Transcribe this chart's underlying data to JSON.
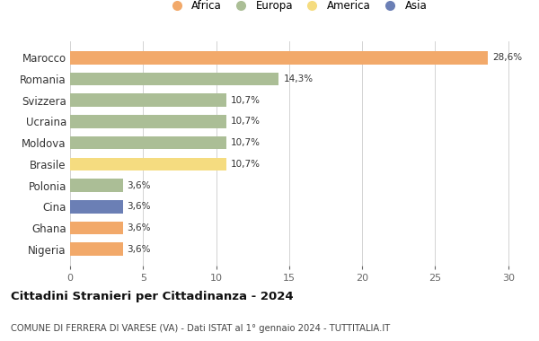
{
  "countries": [
    "Marocco",
    "Romania",
    "Svizzera",
    "Ucraina",
    "Moldova",
    "Brasile",
    "Polonia",
    "Cina",
    "Ghana",
    "Nigeria"
  ],
  "values": [
    28.6,
    14.3,
    10.7,
    10.7,
    10.7,
    10.7,
    3.6,
    3.6,
    3.6,
    3.6
  ],
  "labels": [
    "28,6%",
    "14,3%",
    "10,7%",
    "10,7%",
    "10,7%",
    "10,7%",
    "3,6%",
    "3,6%",
    "3,6%",
    "3,6%"
  ],
  "colors": [
    "#F2A96A",
    "#ABBE96",
    "#ABBE96",
    "#ABBE96",
    "#ABBE96",
    "#F5DC80",
    "#ABBE96",
    "#6B7FB5",
    "#F2A96A",
    "#F2A96A"
  ],
  "legend_labels": [
    "Africa",
    "Europa",
    "America",
    "Asia"
  ],
  "legend_colors": [
    "#F2A96A",
    "#ABBE96",
    "#F5DC80",
    "#6B7FB5"
  ],
  "title": "Cittadini Stranieri per Cittadinanza - 2024",
  "subtitle": "COMUNE DI FERRERA DI VARESE (VA) - Dati ISTAT al 1° gennaio 2024 - TUTTITALIA.IT",
  "xlim": [
    0,
    31
  ],
  "xticks": [
    0,
    5,
    10,
    15,
    20,
    25,
    30
  ],
  "background_color": "#ffffff",
  "bar_height": 0.62
}
